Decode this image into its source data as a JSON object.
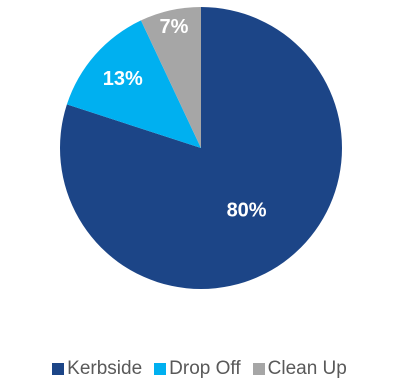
{
  "chart_data": {
    "type": "pie",
    "categories": [
      "Kerbside",
      "Drop Off",
      "Clean Up"
    ],
    "values": [
      80,
      13,
      7
    ],
    "labels": [
      "80%",
      "13%",
      "7%"
    ],
    "colors": [
      "#1C4587",
      "#00B0F0",
      "#A6A6A6"
    ],
    "legend_position": "bottom",
    "start_angle": "12 o'clock",
    "direction": "clockwise"
  }
}
